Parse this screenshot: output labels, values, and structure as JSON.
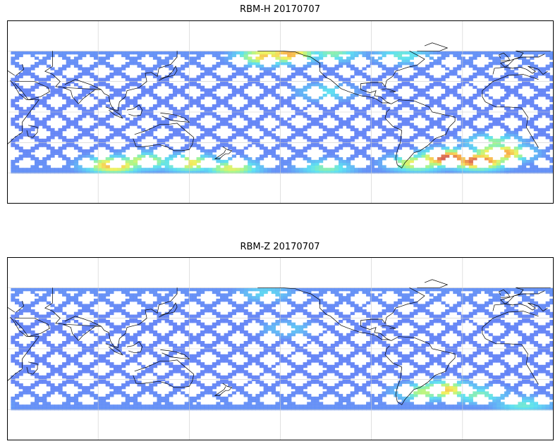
{
  "panels": [
    {
      "title": "RBM-H 20170707",
      "colormap": "jet",
      "min_lat": -60,
      "max_lat": 60,
      "hotspots": [
        {
          "lon": 100,
          "lat": -52,
          "level": 0.85
        },
        {
          "lon": 120,
          "lat": -48,
          "level": 0.7
        },
        {
          "lon": 150,
          "lat": -50,
          "level": 0.75
        },
        {
          "lon": 178,
          "lat": -55,
          "level": 0.7
        },
        {
          "lon": 240,
          "lat": -55,
          "level": 0.55
        },
        {
          "lon": 300,
          "lat": -50,
          "level": 0.75
        },
        {
          "lon": 320,
          "lat": -45,
          "level": 1.0
        },
        {
          "lon": 340,
          "lat": -48,
          "level": 1.0
        },
        {
          "lon": 355,
          "lat": -40,
          "level": 0.9
        },
        {
          "lon": 350,
          "lat": -30,
          "level": 0.6
        },
        {
          "lon": 200,
          "lat": 55,
          "level": 0.8
        },
        {
          "lon": 215,
          "lat": 57,
          "level": 0.85
        },
        {
          "lon": 245,
          "lat": 58,
          "level": 0.55
        },
        {
          "lon": 290,
          "lat": 56,
          "level": 0.5
        },
        {
          "lon": 240,
          "lat": 20,
          "level": 0.45
        }
      ]
    },
    {
      "title": "RBM-Z 20170707",
      "colormap": "jet",
      "min_lat": -60,
      "max_lat": 60,
      "hotspots": [
        {
          "lon": 318,
          "lat": -40,
          "level": 0.8
        },
        {
          "lon": 305,
          "lat": -42,
          "level": 0.65
        },
        {
          "lon": 340,
          "lat": -45,
          "level": 0.55
        },
        {
          "lon": 10,
          "lat": -55,
          "level": 0.5
        },
        {
          "lon": 200,
          "lat": 55,
          "level": 0.4
        },
        {
          "lon": 215,
          "lat": 20,
          "level": 0.35
        }
      ]
    }
  ]
}
